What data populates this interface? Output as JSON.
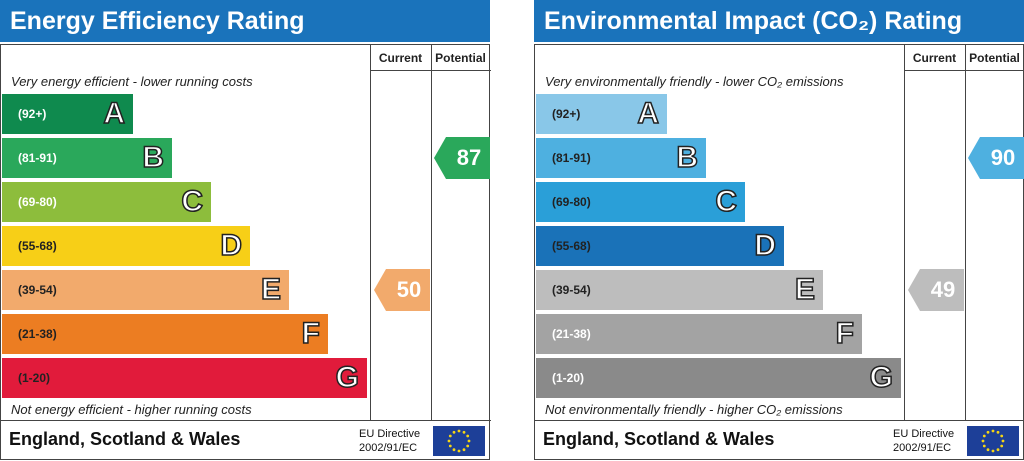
{
  "chart_data": [
    {
      "type": "bar",
      "title": "Energy Efficiency Rating",
      "columns": [
        "Current",
        "Potential"
      ],
      "top_note": "Very energy efficient - lower running costs",
      "bottom_note": "Not energy efficient - higher running costs",
      "bands": [
        {
          "range": "(92+)",
          "letter": "A",
          "color": "#0f8a4e",
          "text_color": "#ffffff"
        },
        {
          "range": "(81-91)",
          "letter": "B",
          "color": "#2aa85b",
          "text_color": "#ffffff"
        },
        {
          "range": "(69-80)",
          "letter": "C",
          "color": "#8dbd3c",
          "text_color": "#ffffff"
        },
        {
          "range": "(55-68)",
          "letter": "D",
          "color": "#f7cf17",
          "text_color": "#222222"
        },
        {
          "range": "(39-54)",
          "letter": "E",
          "color": "#f2aa6c",
          "text_color": "#222222"
        },
        {
          "range": "(21-38)",
          "letter": "F",
          "color": "#ec7d22",
          "text_color": "#222222"
        },
        {
          "range": "(1-20)",
          "letter": "G",
          "color": "#e11b3b",
          "text_color": "#222222"
        }
      ],
      "current": {
        "value": 50,
        "color": "#f2aa6c"
      },
      "potential": {
        "value": 87,
        "color": "#2aa85b"
      },
      "footer": "England, Scotland & Wales",
      "eu_directive": [
        "EU Directive",
        "2002/91/EC"
      ]
    },
    {
      "type": "bar",
      "title": "Environmental Impact (CO₂) Rating",
      "columns": [
        "Current",
        "Potential"
      ],
      "top_note": "Very environmentally friendly - lower CO₂ emissions",
      "bottom_note": "Not environmentally friendly - higher CO₂ emissions",
      "bands": [
        {
          "range": "(92+)",
          "letter": "A",
          "color": "#89c7e8",
          "text_color": "#222222"
        },
        {
          "range": "(81-91)",
          "letter": "B",
          "color": "#4eb0e0",
          "text_color": "#222222"
        },
        {
          "range": "(69-80)",
          "letter": "C",
          "color": "#2a9fd8",
          "text_color": "#222222"
        },
        {
          "range": "(55-68)",
          "letter": "D",
          "color": "#1a72b8",
          "text_color": "#222222"
        },
        {
          "range": "(39-54)",
          "letter": "E",
          "color": "#bdbdbd",
          "text_color": "#222222"
        },
        {
          "range": "(21-38)",
          "letter": "F",
          "color": "#a3a3a3",
          "text_color": "#ffffff"
        },
        {
          "range": "(1-20)",
          "letter": "G",
          "color": "#8a8a8a",
          "text_color": "#ffffff"
        }
      ],
      "current": {
        "value": 49,
        "color": "#bdbdbd"
      },
      "potential": {
        "value": 90,
        "color": "#4eb0e0"
      },
      "footer": "England, Scotland & Wales",
      "eu_directive": [
        "EU Directive",
        "2002/91/EC"
      ]
    }
  ]
}
